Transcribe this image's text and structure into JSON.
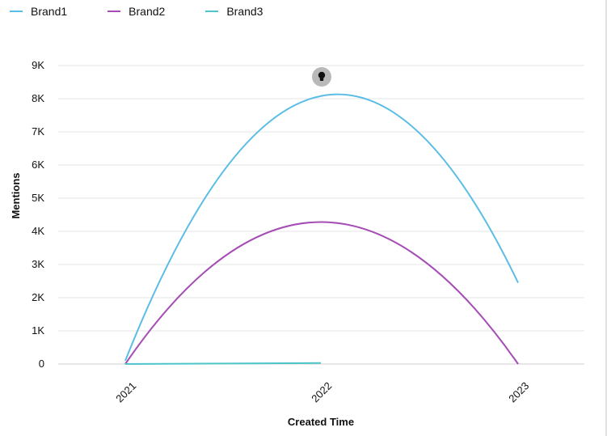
{
  "chart_data": {
    "type": "line",
    "xlabel": "Created Time",
    "ylabel": "Mentions",
    "categories": [
      "2021",
      "2022",
      "2023"
    ],
    "ylim": [
      0,
      9000
    ],
    "yticks": [
      0,
      1000,
      2000,
      3000,
      4000,
      5000,
      6000,
      7000,
      8000,
      9000
    ],
    "ytick_labels": [
      "0",
      "1K",
      "2K",
      "3K",
      "4K",
      "5K",
      "6K",
      "7K",
      "8K",
      "9K"
    ],
    "grid": true,
    "legend_position": "top-left",
    "series": [
      {
        "name": "Brand1",
        "color": "#5bbde6",
        "values": [
          100,
          8080,
          2450
        ]
      },
      {
        "name": "Brand2",
        "color": "#a54db5",
        "values": [
          0,
          4280,
          0
        ]
      },
      {
        "name": "Brand3",
        "color": "#4cc6c9",
        "values": [
          0,
          30,
          null
        ]
      }
    ],
    "annotation": {
      "category": "2022",
      "icon": "lightbulb-icon"
    }
  }
}
